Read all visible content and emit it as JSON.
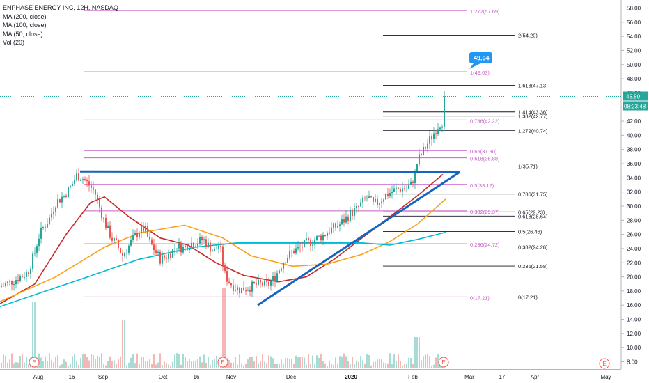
{
  "title": "ENPHASE ENERGY INC, 12H, NASDAQ",
  "legend": {
    "ma200": "MA (200, close)",
    "ma100": "MA (100, close)",
    "ma50": "MA (50, close)",
    "vol": "Vol (20)"
  },
  "price_badge": {
    "value": "45.50",
    "countdown": "08:23:48",
    "color": "#26a69a"
  },
  "callout": {
    "value": "49.04",
    "color": "#2196f3"
  },
  "colors": {
    "up": "#26a69a",
    "down": "#ef5350",
    "ma200": "#00bcd4",
    "ma100": "#f7a21b",
    "ma50": "#c62828",
    "fib_purple": "#c561c7",
    "fib_black": "#131722",
    "trendline": "#1565c0",
    "vol_up": "#a7dcd5",
    "vol_down": "#f5b7b5"
  },
  "chart_data": {
    "type": "candlestick",
    "title": "ENPHASE ENERGY INC, 12H, NASDAQ",
    "y_axis": {
      "range": [
        6.6,
        60.3
      ],
      "ticks": [
        "58.00",
        "56.00",
        "54.00",
        "52.00",
        "50.00",
        "48.00",
        "46.00",
        "44.00",
        "42.00",
        "40.00",
        "38.00",
        "36.00",
        "34.00",
        "32.00",
        "30.00",
        "28.00",
        "26.00",
        "24.00",
        "22.00",
        "20.00",
        "18.00",
        "16.00",
        "14.00",
        "12.00",
        "10.00",
        "8.00"
      ]
    },
    "x_axis": {
      "ticks": [
        "Aug",
        "16",
        "Sep",
        "Oct",
        "16",
        "Nov",
        "Dec",
        "2020",
        "Feb",
        "Mar",
        "17",
        "Apr",
        "May"
      ]
    },
    "last_price": 45.5,
    "approx_close_path": [
      [
        "Jul 22",
        18.7
      ],
      [
        "Aug 1",
        21.0
      ],
      [
        "Aug 8",
        26.5
      ],
      [
        "Aug 15",
        31.0
      ],
      [
        "Aug 22",
        34.3
      ],
      [
        "Aug 29",
        33.0
      ],
      [
        "Sep 5",
        29.5
      ],
      [
        "Sep 12",
        25.5
      ],
      [
        "Sep 19",
        23.5
      ],
      [
        "Sep 26",
        26.5
      ],
      [
        "Oct 3",
        24.0
      ],
      [
        "Oct 10",
        22.5
      ],
      [
        "Oct 17",
        24.5
      ],
      [
        "Oct 24",
        25.0
      ],
      [
        "Oct 31",
        24.0
      ],
      [
        "Nov 5",
        19.0
      ],
      [
        "Nov 12",
        18.0
      ],
      [
        "Nov 19",
        18.3
      ],
      [
        "Nov 26",
        19.0
      ],
      [
        "Dec 3",
        21.5
      ],
      [
        "Dec 10",
        23.0
      ],
      [
        "Dec 17",
        24.5
      ],
      [
        "Dec 24",
        25.5
      ],
      [
        "Dec 31",
        27.0
      ],
      [
        "Jan 7",
        29.0
      ],
      [
        "Jan 14",
        30.0
      ],
      [
        "Jan 21",
        31.5
      ],
      [
        "Jan 28",
        32.0
      ],
      [
        "Feb 4",
        36.5
      ],
      [
        "Feb 11",
        40.0
      ],
      [
        "Feb 18",
        41.5
      ],
      [
        "Feb 21",
        45.5
      ]
    ],
    "moving_averages": [
      {
        "name": "MA (50, close)",
        "color": "#c62828",
        "values": [
          [
            0,
            16.2
          ],
          [
            50,
            19.0
          ],
          [
            95,
            26.0
          ],
          [
            130,
            30.5
          ],
          [
            150,
            31.3
          ],
          [
            185,
            28.5
          ],
          [
            230,
            25.5
          ],
          [
            270,
            24.5
          ],
          [
            310,
            22.0
          ],
          [
            350,
            20.2
          ],
          [
            400,
            19.3
          ],
          [
            440,
            20.0
          ],
          [
            480,
            22.5
          ],
          [
            520,
            25.5
          ],
          [
            560,
            28.5
          ],
          [
            600,
            31.5
          ],
          [
            636,
            34.5
          ]
        ]
      },
      {
        "name": "MA (100, close)",
        "color": "#f7a21b",
        "values": [
          [
            0,
            16.5
          ],
          [
            80,
            20.0
          ],
          [
            150,
            24.2
          ],
          [
            200,
            26.2
          ],
          [
            265,
            27.3
          ],
          [
            320,
            25.5
          ],
          [
            360,
            23.0
          ],
          [
            420,
            21.5
          ],
          [
            470,
            21.8
          ],
          [
            520,
            23.2
          ],
          [
            560,
            25.0
          ],
          [
            600,
            27.5
          ],
          [
            640,
            31.0
          ]
        ]
      },
      {
        "name": "MA (200, close)",
        "color": "#00bcd4",
        "values": [
          [
            0,
            15.8
          ],
          [
            60,
            17.8
          ],
          [
            120,
            19.8
          ],
          [
            200,
            22.5
          ],
          [
            280,
            24.2
          ],
          [
            340,
            24.8
          ],
          [
            450,
            24.8
          ],
          [
            520,
            24.8
          ],
          [
            560,
            24.5
          ],
          [
            600,
            25.3
          ],
          [
            640,
            26.3
          ]
        ]
      }
    ],
    "fib_levels_purple": [
      {
        "label": "1.272(57.69)",
        "value": 57.69
      },
      {
        "label": "1(49.03)",
        "value": 49.03
      },
      {
        "label": "0.786(42.22)",
        "value": 42.22
      },
      {
        "label": "0.65(37.90)",
        "value": 37.9
      },
      {
        "label": "0.618(36.88)",
        "value": 36.88
      },
      {
        "label": "0.5(33.12)",
        "value": 33.12
      },
      {
        "label": "0.382(29.37)",
        "value": 29.37
      },
      {
        "label": "0.236(24.72)",
        "value": 24.72
      },
      {
        "label": "0(17.21)",
        "value": 17.21
      }
    ],
    "fib_levels_black": [
      {
        "label": "2(54.20)",
        "value": 54.2
      },
      {
        "label": "1.618(47.13)",
        "value": 47.13
      },
      {
        "label": "1.414(43.36)",
        "value": 43.36
      },
      {
        "label": "1.382(42.77)",
        "value": 42.77
      },
      {
        "label": "1.272(40.74)",
        "value": 40.74
      },
      {
        "label": "1(35.71)",
        "value": 35.71
      },
      {
        "label": "0.786(31.75)",
        "value": 31.75
      },
      {
        "label": "0.65(29.23)",
        "value": 29.23
      },
      {
        "label": "0.618(28.64)",
        "value": 28.64
      },
      {
        "label": "0.5(26.46)",
        "value": 26.46
      },
      {
        "label": "0.382(24.28)",
        "value": 24.28
      },
      {
        "label": "0.236(21.58)",
        "value": 21.58
      },
      {
        "label": "0(17.21)",
        "value": 17.21
      }
    ],
    "trendlines": [
      {
        "name": "resistance",
        "from": [
          34.9
        ],
        "to": [
          34.8
        ]
      },
      {
        "name": "rising support",
        "from": [
          16.0
        ],
        "to": [
          34.8
        ]
      }
    ],
    "earnings_markers": [
      "E",
      "E",
      "E",
      "E"
    ],
    "grid": false,
    "legend_position": "top-left"
  }
}
